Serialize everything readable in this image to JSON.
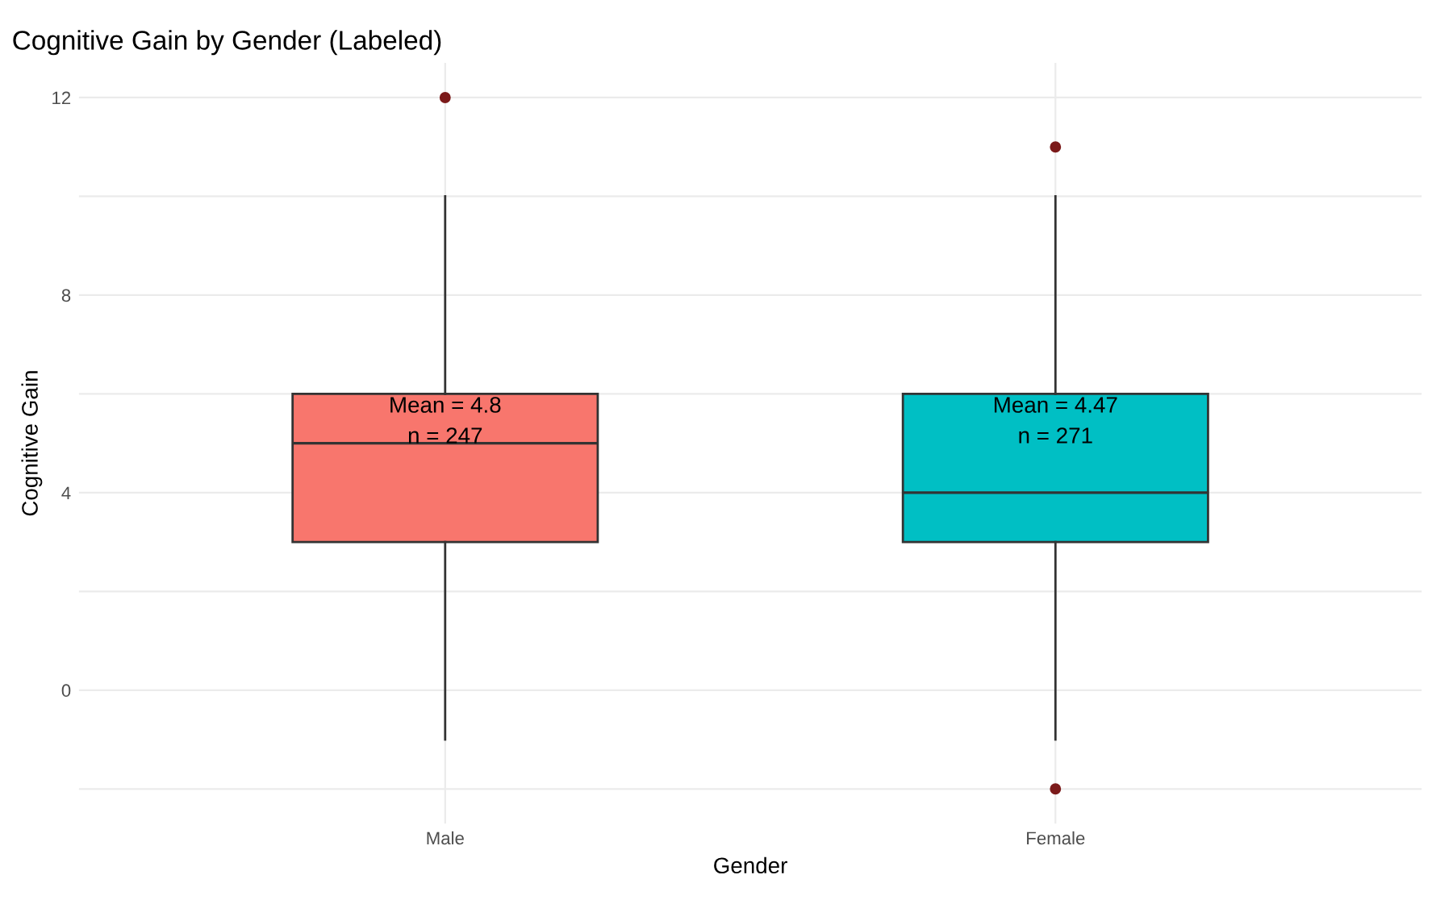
{
  "chart_data": {
    "type": "box",
    "title": "Cognitive Gain by Gender (Labeled)",
    "xlabel": "Gender",
    "ylabel": "Cognitive Gain",
    "categories": [
      "Male",
      "Female"
    ],
    "series": [
      {
        "colors": [
          "#f8766d",
          "#00bfc4"
        ],
        "boxes": [
          {
            "low": -1,
            "q1": 3,
            "median": 5,
            "q3": 6,
            "high": 10,
            "outliers": [
              12
            ]
          },
          {
            "low": -1,
            "q1": 3,
            "median": 4,
            "q3": 6,
            "high": 10,
            "outliers": [
              11,
              -2
            ]
          }
        ]
      }
    ],
    "annotations": [
      "Mean = 4.8\nn = 247",
      "Mean = 4.47\nn = 271"
    ],
    "ylim": [
      -2.7,
      12.7
    ],
    "yticks": [
      {
        "value": -2,
        "label": null
      },
      0,
      {
        "value": 2,
        "label": null
      },
      4,
      {
        "value": 6,
        "label": null
      },
      8,
      {
        "value": 10,
        "label": null
      },
      12
    ],
    "grid": true,
    "legend": false
  }
}
